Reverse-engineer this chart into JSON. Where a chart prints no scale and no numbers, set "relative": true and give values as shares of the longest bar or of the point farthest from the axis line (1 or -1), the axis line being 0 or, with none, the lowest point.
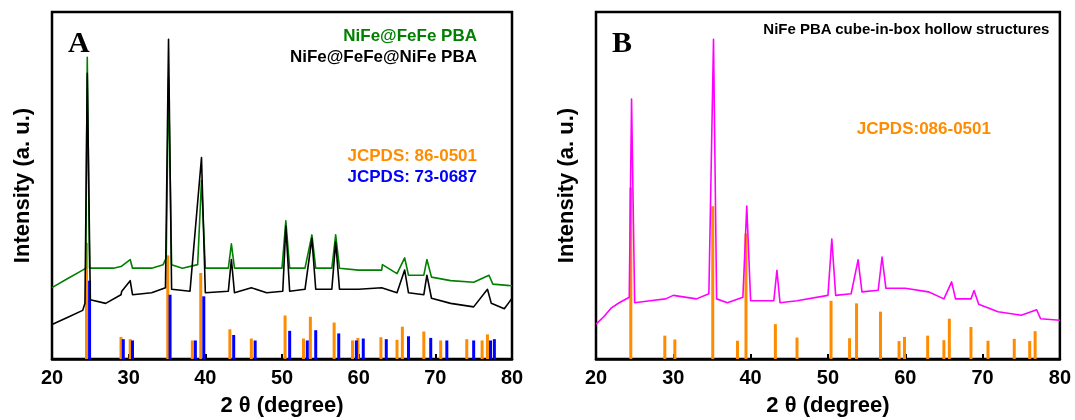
{
  "chart_data": [
    {
      "type": "line",
      "xlabel": "2 θ (degree)",
      "ylabel": "Intensity (a. u.)",
      "annotations": [
        "A"
      ],
      "relative": true,
      "xlim": [
        20,
        80
      ],
      "xticks": [
        20,
        30,
        40,
        50,
        60,
        70,
        80
      ],
      "tick_labels": "x",
      "legend": "top right",
      "grid": false,
      "marker": "none",
      "line_style": "solid",
      "series": [
        {
          "name": "NiFe@FeFe PBA",
          "color": "#008000",
          "x": [
            20,
            22,
            24,
            24.4,
            24.6,
            24.9,
            26,
            28,
            29,
            30.2,
            30.5,
            33,
            34.5,
            34.9,
            35.2,
            35.6,
            37,
            39,
            39.5,
            40,
            43,
            43.4,
            43.8,
            46,
            50,
            50.5,
            51,
            53,
            53.9,
            54.4,
            56.5,
            57,
            57.5,
            60,
            63,
            63.1,
            65,
            66,
            66.5,
            68.5,
            68.9,
            69.5,
            72,
            75,
            77,
            77.5,
            80
          ],
          "values": [
            0.223,
            0.251,
            0.278,
            0.284,
            0.943,
            0.284,
            0.284,
            0.284,
            0.289,
            0.311,
            0.284,
            0.284,
            0.295,
            0.316,
            0.88,
            0.295,
            0.284,
            0.295,
            0.558,
            0.284,
            0.284,
            0.36,
            0.284,
            0.284,
            0.284,
            0.432,
            0.284,
            0.284,
            0.388,
            0.284,
            0.284,
            0.388,
            0.284,
            0.278,
            0.278,
            0.295,
            0.267,
            0.316,
            0.262,
            0.262,
            0.311,
            0.256,
            0.245,
            0.24,
            0.262,
            0.234,
            0.229
          ]
        },
        {
          "name": "NiFe@FeFe@NiFe PBA",
          "color": "#000000",
          "x": [
            20,
            22,
            24,
            24.3,
            24.6,
            25,
            27,
            29,
            29.1,
            30.2,
            30.5,
            33,
            34.8,
            35.2,
            35.6,
            38,
            39.5,
            40,
            43,
            43.4,
            43.8,
            46,
            48,
            50.1,
            50.5,
            51,
            53,
            53.9,
            54.4,
            56.5,
            57,
            57.5,
            60,
            63,
            65,
            66,
            66.5,
            68.5,
            68.9,
            69.5,
            72,
            75,
            76.8,
            77.3,
            79,
            80
          ],
          "values": [
            0.108,
            0.13,
            0.152,
            0.174,
            0.893,
            0.185,
            0.174,
            0.201,
            0.212,
            0.245,
            0.201,
            0.207,
            0.223,
            1,
            0.218,
            0.212,
            0.63,
            0.207,
            0.212,
            0.311,
            0.207,
            0.223,
            0.207,
            0.212,
            0.415,
            0.212,
            0.218,
            0.377,
            0.218,
            0.218,
            0.366,
            0.218,
            0.218,
            0.223,
            0.207,
            0.278,
            0.207,
            0.201,
            0.262,
            0.19,
            0.174,
            0.163,
            0.218,
            0.174,
            0.157,
            0.19
          ]
        },
        {
          "name": "JCPDS: 86-0501",
          "type": "bar",
          "color": "#ff8c00",
          "x": [
            24.5,
            29,
            30.2,
            35.1,
            38.3,
            39.4,
            43.2,
            46,
            50.4,
            52.8,
            53.7,
            56.8,
            59.2,
            59.9,
            62.9,
            65,
            65.7,
            68.5,
            70.7,
            74.1,
            76.1,
            76.8
          ],
          "values": [
            0.363,
            0.069,
            0.062,
            0.324,
            0.058,
            0.269,
            0.093,
            0.064,
            0.136,
            0.064,
            0.132,
            0.114,
            0.058,
            0.066,
            0.068,
            0.06,
            0.101,
            0.086,
            0.058,
            0.062,
            0.058,
            0.077
          ]
        },
        {
          "name": "JCPDS: 73-0687",
          "type": "bar",
          "color": "#0000ff",
          "x": [
            24.9,
            29.3,
            30.5,
            35.4,
            38.7,
            39.8,
            43.7,
            46.5,
            51,
            53.3,
            54.4,
            57.4,
            59.7,
            60.6,
            63.6,
            66.5,
            69.4,
            71.5,
            75,
            77.2,
            77.7
          ],
          "values": [
            0.245,
            0.062,
            0.058,
            0.201,
            0.058,
            0.196,
            0.075,
            0.058,
            0.088,
            0.058,
            0.09,
            0.08,
            0.058,
            0.064,
            0.062,
            0.071,
            0.066,
            0.058,
            0.058,
            0.058,
            0.062
          ]
        }
      ]
    },
    {
      "type": "line",
      "title": "NiFe PBA cube-in-box hollow structures",
      "xlabel": "2 θ (degree)",
      "ylabel": "Intensity (a. u.)",
      "annotations": [
        "B"
      ],
      "relative": true,
      "xlim": [
        20,
        80
      ],
      "xticks": [
        20,
        30,
        40,
        50,
        60,
        70,
        80
      ],
      "tick_labels": "x",
      "legend": "right",
      "grid": false,
      "marker": "none",
      "line_style": "solid",
      "series": [
        {
          "color": "#ff00ff",
          "x": [
            20,
            21,
            22,
            23,
            24.3,
            24.6,
            25,
            27,
            29,
            30,
            33,
            34.6,
            35.2,
            35.6,
            37,
            39,
            39.5,
            40,
            43,
            43.4,
            43.8,
            46,
            50,
            50.5,
            51,
            53,
            53.9,
            54.4,
            56.5,
            57,
            57.5,
            60,
            63,
            65,
            66,
            66.5,
            68.5,
            68.9,
            69.5,
            72,
            75,
            77,
            77.5,
            80
          ],
          "values": [
            0.109,
            0.132,
            0.16,
            0.176,
            0.193,
            0.813,
            0.176,
            0.182,
            0.188,
            0.199,
            0.188,
            0.204,
            1,
            0.188,
            0.176,
            0.193,
            0.478,
            0.182,
            0.182,
            0.277,
            0.176,
            0.182,
            0.199,
            0.375,
            0.199,
            0.204,
            0.31,
            0.21,
            0.215,
            0.319,
            0.221,
            0.221,
            0.21,
            0.188,
            0.241,
            0.188,
            0.188,
            0.214,
            0.171,
            0.148,
            0.137,
            0.154,
            0.126,
            0.121
          ]
        },
        {
          "name": "JCPDS:086-0501",
          "type": "bar",
          "color": "#ff8c00",
          "x": [
            24.5,
            28.9,
            30.2,
            35.1,
            38.3,
            39.4,
            43.2,
            46,
            50.4,
            52.8,
            53.7,
            56.8,
            59.2,
            59.9,
            62.9,
            65,
            65.7,
            68.5,
            70.7,
            74.1,
            76.1,
            76.8
          ],
          "values": [
            0.536,
            0.073,
            0.061,
            0.478,
            0.057,
            0.392,
            0.109,
            0.067,
            0.182,
            0.065,
            0.174,
            0.148,
            0.056,
            0.069,
            0.073,
            0.059,
            0.126,
            0.1,
            0.057,
            0.063,
            0.056,
            0.087
          ]
        }
      ]
    }
  ]
}
